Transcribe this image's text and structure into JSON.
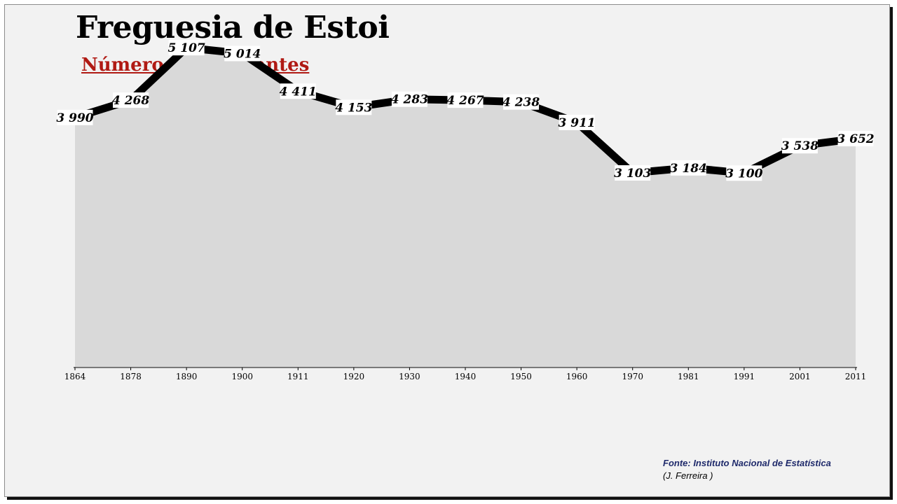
{
  "header": {
    "title": "Freguesia de Estoi",
    "subtitle": "Número de habitantes"
  },
  "footer": {
    "source": "Fonte: Instituto Nacional de Estatística",
    "author": "(J. Ferreira )"
  },
  "colors": {
    "area": "#d9d9d9",
    "line": "#000000",
    "title": "#000000",
    "subtitle": "#b01a14",
    "source": "#1f2a6b",
    "background": "#f2f2f2"
  },
  "chart_data": {
    "type": "area",
    "categories": [
      "1864",
      "1878",
      "1890",
      "1900",
      "1911",
      "1920",
      "1930",
      "1940",
      "1950",
      "1960",
      "1970",
      "1981",
      "1991",
      "2001",
      "2011"
    ],
    "values": [
      3990,
      4268,
      5107,
      5014,
      4411,
      4153,
      4283,
      4267,
      4238,
      3911,
      3103,
      3184,
      3100,
      3538,
      3652
    ],
    "value_labels": [
      "3 990",
      "4 268",
      "5 107",
      "5 014",
      "4 411",
      "4 153",
      "4 283",
      "4 267",
      "4 238",
      "3 911",
      "3 103",
      "3 184",
      "3 100",
      "3 538",
      "3 652"
    ],
    "title": "Freguesia de Estoi",
    "subtitle": "Número de habitantes",
    "xlabel": "",
    "ylabel": "",
    "ylim": [
      0,
      5400
    ],
    "grid": false,
    "legend": "none"
  }
}
